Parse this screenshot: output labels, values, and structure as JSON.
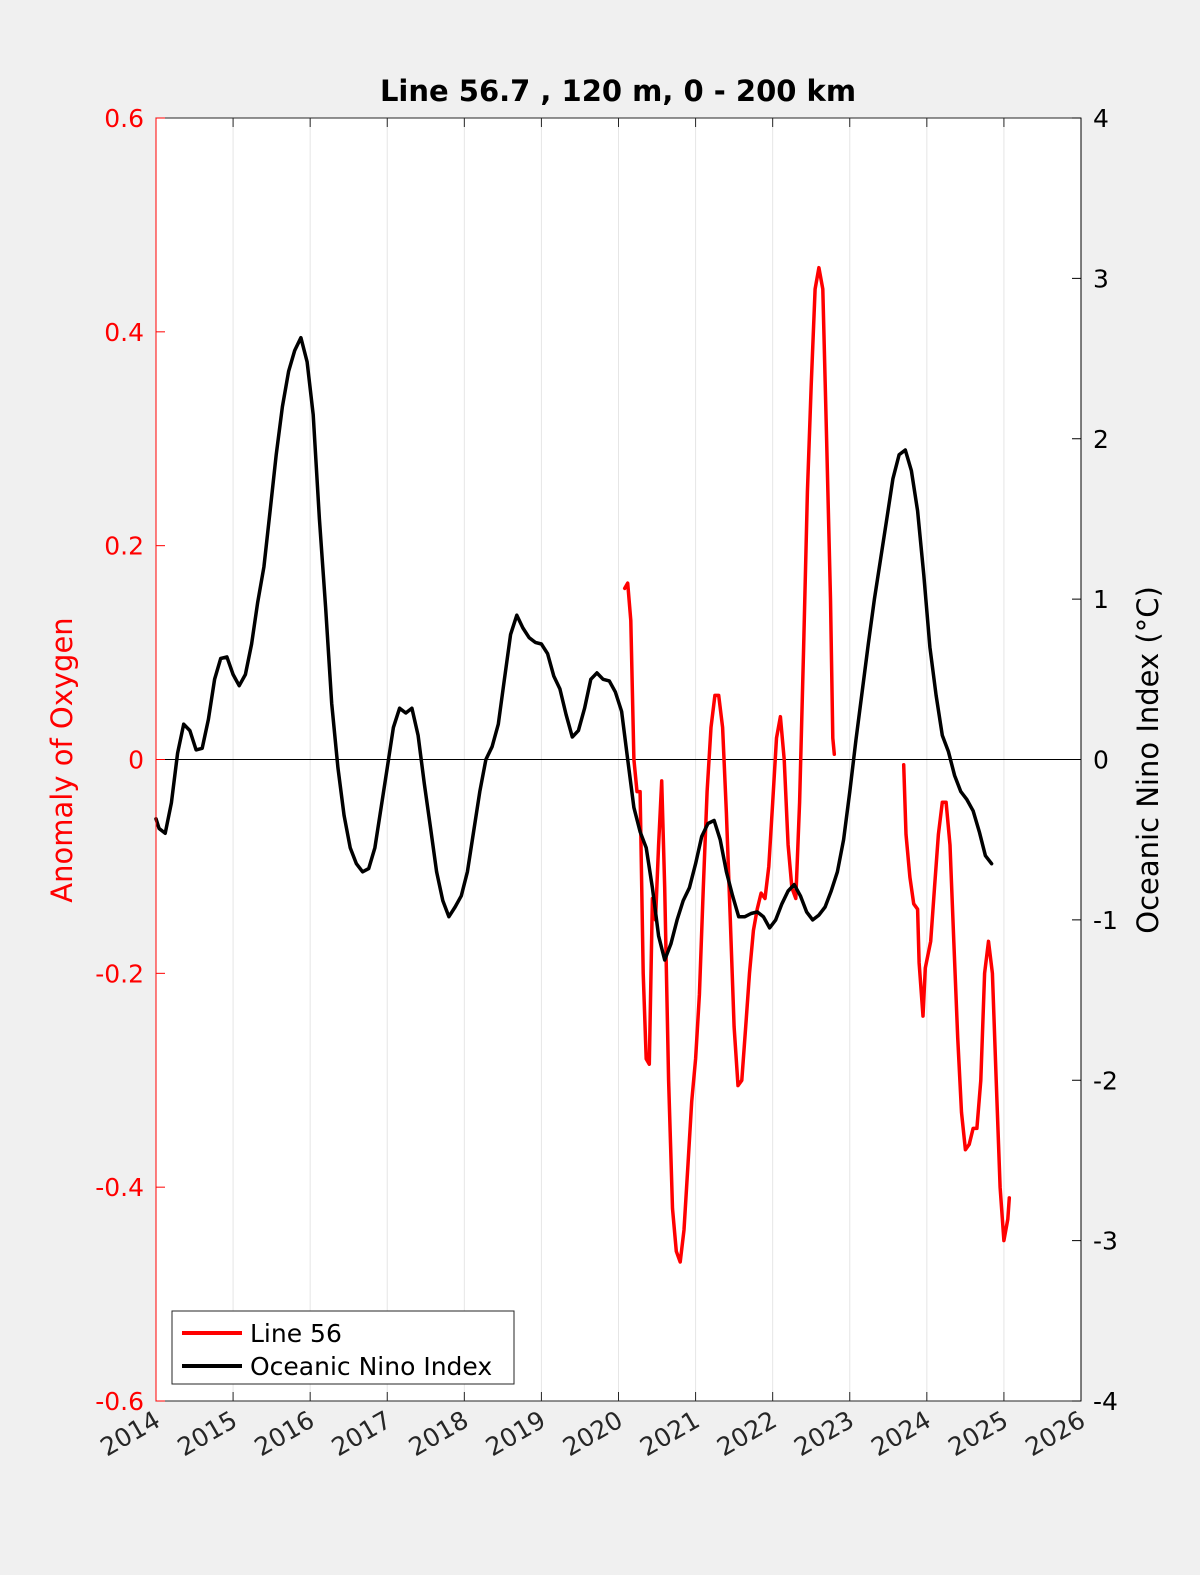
{
  "chart_data": {
    "type": "line",
    "title": "Line 56.7 , 120 m, 0 - 200 km",
    "xlabel": "",
    "ylabel_left": "Anomaly of Oxygen",
    "ylabel_right": "Oceanic Nino Index (°C)",
    "xlim": [
      2014,
      2026
    ],
    "ylim_left": [
      -0.6,
      0.6
    ],
    "ylim_right": [
      -4,
      4
    ],
    "x_ticks": [
      "2014",
      "2015",
      "2016",
      "2017",
      "2018",
      "2019",
      "2020",
      "2021",
      "2022",
      "2023",
      "2024",
      "2025",
      "2026"
    ],
    "y_left_ticks": [
      "-0.6",
      "-0.4",
      "-0.2",
      "0",
      "0.2",
      "0.4",
      "0.6"
    ],
    "y_right_ticks": [
      "-4",
      "-3",
      "-2",
      "-1",
      "0",
      "1",
      "2",
      "3",
      "4"
    ],
    "grid": "vertical",
    "legend_position": "bottom-left",
    "colors": {
      "line56": "#ff0000",
      "oni": "#000000",
      "left_axis": "#ff0000",
      "right_axis": "#000000"
    },
    "series": [
      {
        "name": "Line 56",
        "axis": "left",
        "color": "#ff0000",
        "segments": [
          [
            [
              2020.08,
              0.16
            ],
            [
              2020.12,
              0.165
            ],
            [
              2020.16,
              0.13
            ],
            [
              2020.2,
              0.0
            ],
            [
              2020.24,
              -0.03
            ],
            [
              2020.28,
              -0.03
            ],
            [
              2020.32,
              -0.2
            ],
            [
              2020.36,
              -0.28
            ],
            [
              2020.4,
              -0.285
            ],
            [
              2020.44,
              -0.13
            ],
            [
              2020.48,
              -0.15
            ],
            [
              2020.52,
              -0.08
            ],
            [
              2020.56,
              -0.02
            ],
            [
              2020.6,
              -0.12
            ],
            [
              2020.65,
              -0.3
            ],
            [
              2020.7,
              -0.42
            ],
            [
              2020.75,
              -0.46
            ],
            [
              2020.8,
              -0.47
            ],
            [
              2020.85,
              -0.44
            ],
            [
              2020.9,
              -0.38
            ],
            [
              2020.95,
              -0.32
            ],
            [
              2021.0,
              -0.28
            ],
            [
              2021.05,
              -0.22
            ],
            [
              2021.1,
              -0.12
            ],
            [
              2021.15,
              -0.03
            ],
            [
              2021.2,
              0.03
            ],
            [
              2021.25,
              0.06
            ],
            [
              2021.3,
              0.06
            ],
            [
              2021.35,
              0.03
            ],
            [
              2021.4,
              -0.05
            ],
            [
              2021.45,
              -0.15
            ],
            [
              2021.5,
              -0.25
            ],
            [
              2021.55,
              -0.305
            ],
            [
              2021.6,
              -0.3
            ],
            [
              2021.65,
              -0.25
            ],
            [
              2021.7,
              -0.2
            ],
            [
              2021.75,
              -0.16
            ],
            [
              2021.8,
              -0.14
            ],
            [
              2021.85,
              -0.125
            ],
            [
              2021.9,
              -0.13
            ],
            [
              2021.95,
              -0.1
            ],
            [
              2022.0,
              -0.04
            ],
            [
              2022.05,
              0.02
            ],
            [
              2022.1,
              0.04
            ],
            [
              2022.15,
              0.0
            ],
            [
              2022.2,
              -0.08
            ],
            [
              2022.25,
              -0.12
            ],
            [
              2022.3,
              -0.13
            ],
            [
              2022.35,
              -0.04
            ],
            [
              2022.4,
              0.1
            ],
            [
              2022.45,
              0.25
            ],
            [
              2022.5,
              0.35
            ],
            [
              2022.55,
              0.44
            ],
            [
              2022.6,
              0.46
            ],
            [
              2022.65,
              0.44
            ],
            [
              2022.7,
              0.3
            ],
            [
              2022.75,
              0.15
            ],
            [
              2022.78,
              0.02
            ],
            [
              2022.8,
              0.005
            ]
          ],
          [
            [
              2023.7,
              -0.005
            ],
            [
              2023.73,
              -0.07
            ],
            [
              2023.78,
              -0.11
            ],
            [
              2023.83,
              -0.135
            ],
            [
              2023.88,
              -0.14
            ],
            [
              2023.9,
              -0.19
            ],
            [
              2023.95,
              -0.24
            ],
            [
              2023.98,
              -0.195
            ],
            [
              2024.05,
              -0.17
            ],
            [
              2024.1,
              -0.12
            ],
            [
              2024.15,
              -0.07
            ],
            [
              2024.2,
              -0.04
            ],
            [
              2024.25,
              -0.04
            ],
            [
              2024.3,
              -0.08
            ],
            [
              2024.35,
              -0.17
            ],
            [
              2024.4,
              -0.26
            ],
            [
              2024.45,
              -0.33
            ],
            [
              2024.5,
              -0.365
            ],
            [
              2024.55,
              -0.36
            ],
            [
              2024.6,
              -0.345
            ],
            [
              2024.65,
              -0.345
            ],
            [
              2024.7,
              -0.3
            ],
            [
              2024.75,
              -0.2
            ],
            [
              2024.8,
              -0.17
            ],
            [
              2024.85,
              -0.2
            ],
            [
              2024.9,
              -0.3
            ],
            [
              2024.95,
              -0.4
            ],
            [
              2025.0,
              -0.45
            ],
            [
              2025.05,
              -0.43
            ],
            [
              2025.07,
              -0.41
            ]
          ]
        ]
      },
      {
        "name": "Oceanic Nino Index",
        "axis": "right",
        "color": "#000000",
        "points": [
          [
            2014.0,
            -0.37
          ],
          [
            2014.04,
            -0.43
          ],
          [
            2014.12,
            -0.46
          ],
          [
            2014.2,
            -0.27
          ],
          [
            2014.28,
            0.04
          ],
          [
            2014.36,
            0.22
          ],
          [
            2014.44,
            0.18
          ],
          [
            2014.52,
            0.06
          ],
          [
            2014.6,
            0.07
          ],
          [
            2014.68,
            0.25
          ],
          [
            2014.76,
            0.5
          ],
          [
            2014.84,
            0.63
          ],
          [
            2014.92,
            0.64
          ],
          [
            2015.0,
            0.53
          ],
          [
            2015.08,
            0.46
          ],
          [
            2015.16,
            0.53
          ],
          [
            2015.24,
            0.72
          ],
          [
            2015.32,
            0.98
          ],
          [
            2015.4,
            1.2
          ],
          [
            2015.48,
            1.55
          ],
          [
            2015.56,
            1.9
          ],
          [
            2015.64,
            2.2
          ],
          [
            2015.72,
            2.42
          ],
          [
            2015.8,
            2.55
          ],
          [
            2015.88,
            2.63
          ],
          [
            2015.96,
            2.48
          ],
          [
            2016.04,
            2.15
          ],
          [
            2016.12,
            1.5
          ],
          [
            2016.2,
            0.95
          ],
          [
            2016.28,
            0.35
          ],
          [
            2016.36,
            -0.05
          ],
          [
            2016.44,
            -0.35
          ],
          [
            2016.52,
            -0.55
          ],
          [
            2016.6,
            -0.65
          ],
          [
            2016.68,
            -0.7
          ],
          [
            2016.76,
            -0.68
          ],
          [
            2016.84,
            -0.55
          ],
          [
            2016.92,
            -0.3
          ],
          [
            2017.0,
            -0.05
          ],
          [
            2017.08,
            0.2
          ],
          [
            2017.16,
            0.32
          ],
          [
            2017.24,
            0.29
          ],
          [
            2017.32,
            0.32
          ],
          [
            2017.4,
            0.15
          ],
          [
            2017.48,
            -0.15
          ],
          [
            2017.56,
            -0.42
          ],
          [
            2017.64,
            -0.7
          ],
          [
            2017.72,
            -0.88
          ],
          [
            2017.8,
            -0.98
          ],
          [
            2017.88,
            -0.92
          ],
          [
            2017.96,
            -0.85
          ],
          [
            2018.04,
            -0.7
          ],
          [
            2018.12,
            -0.45
          ],
          [
            2018.2,
            -0.2
          ],
          [
            2018.28,
            0.0
          ],
          [
            2018.36,
            0.08
          ],
          [
            2018.44,
            0.22
          ],
          [
            2018.52,
            0.5
          ],
          [
            2018.6,
            0.78
          ],
          [
            2018.68,
            0.9
          ],
          [
            2018.76,
            0.82
          ],
          [
            2018.84,
            0.76
          ],
          [
            2018.92,
            0.73
          ],
          [
            2019.0,
            0.72
          ],
          [
            2019.08,
            0.66
          ],
          [
            2019.16,
            0.52
          ],
          [
            2019.24,
            0.44
          ],
          [
            2019.32,
            0.28
          ],
          [
            2019.4,
            0.14
          ],
          [
            2019.48,
            0.18
          ],
          [
            2019.56,
            0.32
          ],
          [
            2019.64,
            0.5
          ],
          [
            2019.72,
            0.54
          ],
          [
            2019.8,
            0.5
          ],
          [
            2019.88,
            0.49
          ],
          [
            2019.96,
            0.42
          ],
          [
            2020.04,
            0.3
          ],
          [
            2020.12,
            0.0
          ],
          [
            2020.2,
            -0.3
          ],
          [
            2020.28,
            -0.45
          ],
          [
            2020.36,
            -0.55
          ],
          [
            2020.44,
            -0.8
          ],
          [
            2020.52,
            -1.1
          ],
          [
            2020.6,
            -1.25
          ],
          [
            2020.68,
            -1.15
          ],
          [
            2020.76,
            -1.0
          ],
          [
            2020.84,
            -0.88
          ],
          [
            2020.92,
            -0.8
          ],
          [
            2021.0,
            -0.65
          ],
          [
            2021.08,
            -0.48
          ],
          [
            2021.16,
            -0.4
          ],
          [
            2021.24,
            -0.38
          ],
          [
            2021.32,
            -0.5
          ],
          [
            2021.4,
            -0.7
          ],
          [
            2021.48,
            -0.85
          ],
          [
            2021.56,
            -0.98
          ],
          [
            2021.64,
            -0.98
          ],
          [
            2021.72,
            -0.96
          ],
          [
            2021.8,
            -0.95
          ],
          [
            2021.88,
            -0.98
          ],
          [
            2021.96,
            -1.05
          ],
          [
            2022.04,
            -1.0
          ],
          [
            2022.12,
            -0.9
          ],
          [
            2022.2,
            -0.82
          ],
          [
            2022.28,
            -0.78
          ],
          [
            2022.36,
            -0.85
          ],
          [
            2022.44,
            -0.95
          ],
          [
            2022.52,
            -1.0
          ],
          [
            2022.6,
            -0.97
          ],
          [
            2022.68,
            -0.92
          ],
          [
            2022.76,
            -0.82
          ],
          [
            2022.84,
            -0.7
          ],
          [
            2022.92,
            -0.5
          ],
          [
            2023.0,
            -0.2
          ],
          [
            2023.08,
            0.12
          ],
          [
            2023.16,
            0.42
          ],
          [
            2023.24,
            0.72
          ],
          [
            2023.32,
            1.0
          ],
          [
            2023.4,
            1.25
          ],
          [
            2023.48,
            1.5
          ],
          [
            2023.56,
            1.75
          ],
          [
            2023.64,
            1.9
          ],
          [
            2023.72,
            1.93
          ],
          [
            2023.8,
            1.8
          ],
          [
            2023.88,
            1.55
          ],
          [
            2023.96,
            1.15
          ],
          [
            2024.04,
            0.7
          ],
          [
            2024.12,
            0.4
          ],
          [
            2024.2,
            0.15
          ],
          [
            2024.28,
            0.05
          ],
          [
            2024.36,
            -0.1
          ],
          [
            2024.44,
            -0.2
          ],
          [
            2024.52,
            -0.25
          ],
          [
            2024.6,
            -0.32
          ],
          [
            2024.68,
            -0.45
          ],
          [
            2024.76,
            -0.6
          ],
          [
            2024.84,
            -0.65
          ]
        ]
      }
    ]
  }
}
